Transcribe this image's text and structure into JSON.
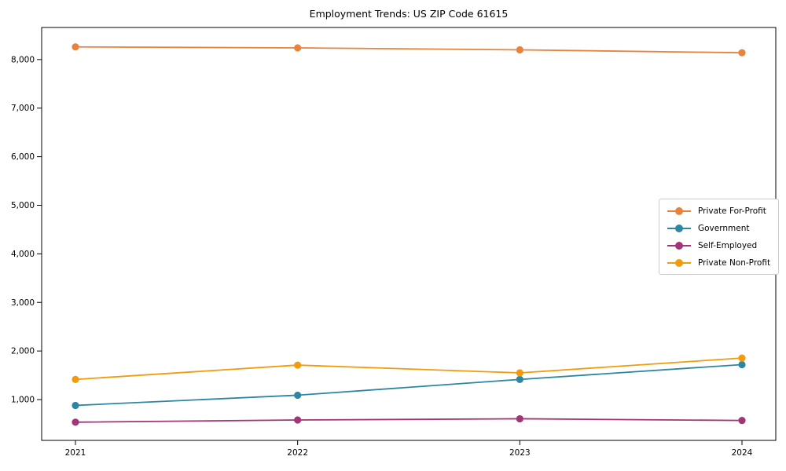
{
  "chart_data": {
    "type": "line",
    "title": "Employment Trends: US ZIP Code 61615",
    "categories": [
      "2021",
      "2022",
      "2023",
      "2024"
    ],
    "series": [
      {
        "name": "Private For-Profit",
        "color": "#E8833C",
        "values": [
          8260,
          8240,
          8200,
          8140
        ]
      },
      {
        "name": "Government",
        "color": "#2E86A5",
        "values": [
          880,
          1090,
          1415,
          1720
        ]
      },
      {
        "name": "Self-Employed",
        "color": "#A33576",
        "values": [
          535,
          580,
          605,
          570
        ]
      },
      {
        "name": "Private Non-Profit",
        "color": "#F09C0D",
        "values": [
          1415,
          1710,
          1550,
          1855
        ]
      }
    ],
    "xlabel": "",
    "ylabel": "",
    "ylim": [
      160,
      8660
    ],
    "yticks": [
      1000,
      2000,
      3000,
      4000,
      5000,
      6000,
      7000,
      8000
    ],
    "ytick_format": "thousands-comma",
    "grid": false,
    "legend_position": "right-middle",
    "marker": "circle",
    "axis_color": "#000000",
    "background": "#ffffff"
  }
}
